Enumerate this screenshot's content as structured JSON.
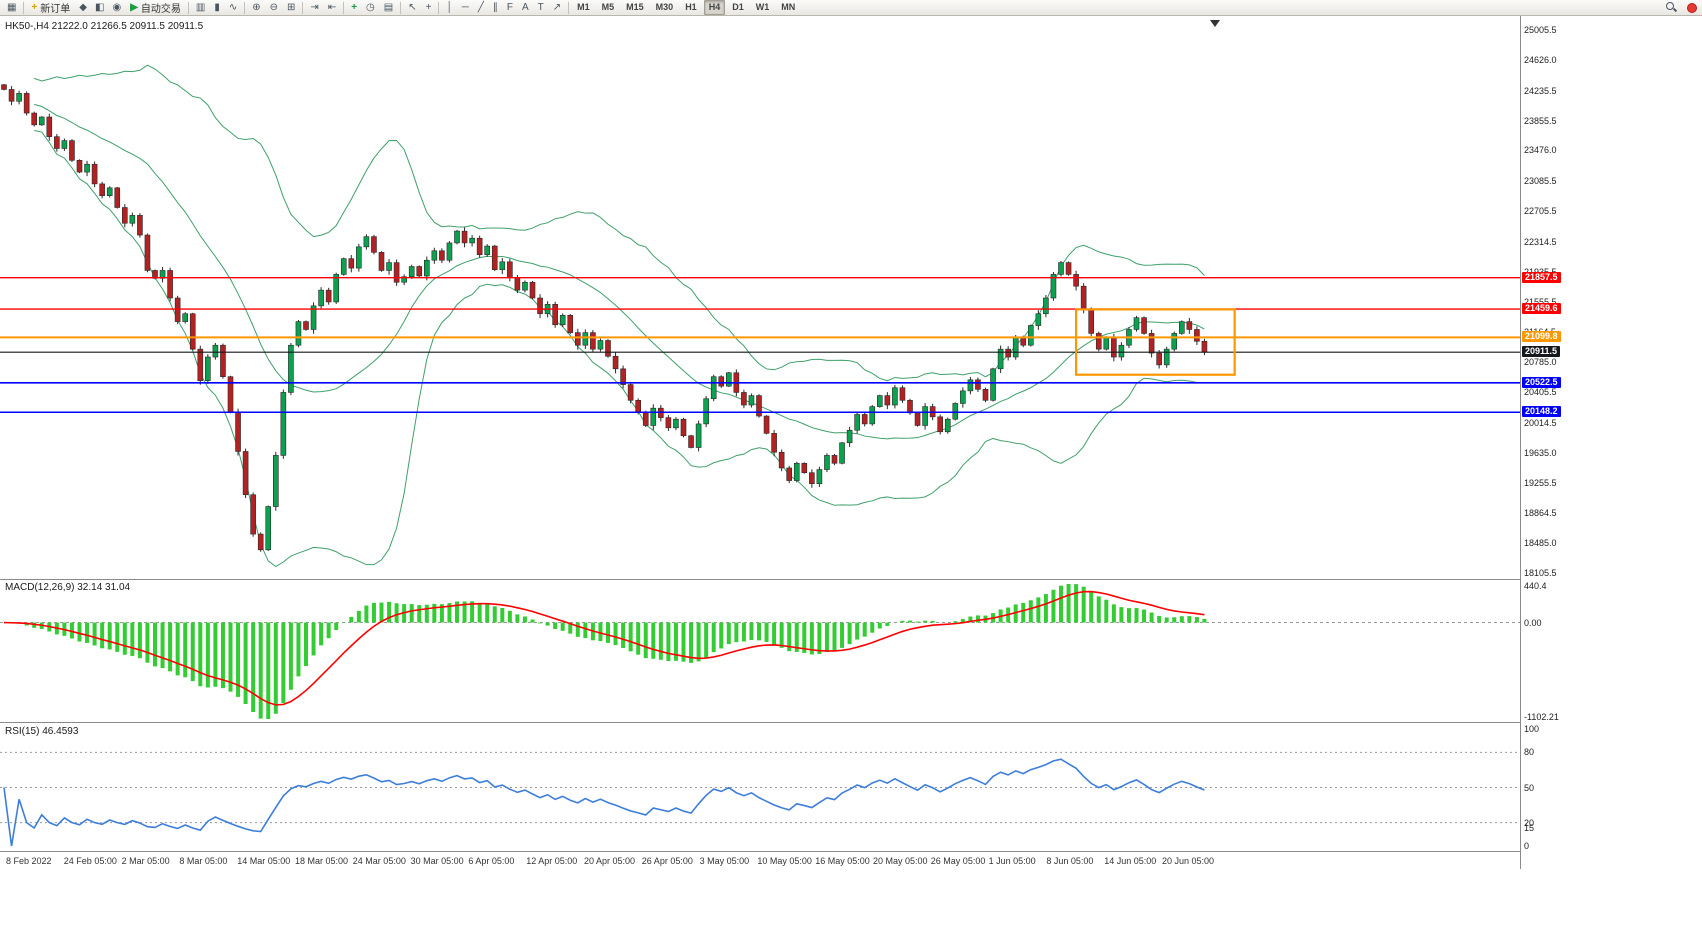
{
  "colors": {
    "bull": "#0ba14e",
    "bear": "#b22222",
    "bands": "#3fa06b",
    "macd_hist": "#33cc33",
    "macd_signal": "#ff0000",
    "rsi": "#3d7edb",
    "level_red": "#ff0000",
    "level_orange": "#ff9800",
    "level_blue": "#0000ff",
    "level_black": "#15181d"
  },
  "toolbar": {
    "window_icon": "chart-window",
    "new_order_label": "新订单",
    "auto_trading_label": "自动交易",
    "mid_icons": [
      "metaeditor",
      "market-watch",
      "navigator"
    ],
    "icon_groups": [
      [
        "bar-chart",
        "candlestick",
        "line-chart"
      ],
      [
        "zoom-in",
        "zoom-out",
        "tile-windows"
      ],
      [
        "auto-scroll",
        "chart-shift"
      ],
      [
        "indicators",
        "periods",
        "templates"
      ],
      [
        "cursor",
        "crosshair"
      ],
      [
        "vertical-line",
        "horizontal-line",
        "trendline",
        "channel",
        "fibonacci",
        "text",
        "label",
        "arrows"
      ]
    ],
    "timeframes": [
      "M1",
      "M5",
      "M15",
      "M30",
      "H1",
      "H4",
      "D1",
      "W1",
      "MN"
    ],
    "active_timeframe": "H4",
    "right_icons": [
      "search",
      "notifications"
    ]
  },
  "chart_data": {
    "type": "candlestick",
    "symbol": "HK50-",
    "timeframe": "H4",
    "symbol_info": "HK50-,H4  21222.0 21266.5 20911.5 20911.5",
    "ohlc_info": {
      "open": 21222.0,
      "high": 21266.5,
      "low": 20911.5,
      "close": 20911.5
    },
    "closes": [
      24250,
      24100,
      24200,
      23950,
      23800,
      23900,
      23650,
      23500,
      23600,
      23350,
      23200,
      23300,
      23050,
      22900,
      23000,
      22750,
      22550,
      22650,
      22400,
      21950,
      21850,
      21950,
      21600,
      21300,
      21400,
      20950,
      20550,
      20850,
      21000,
      20600,
      20150,
      19650,
      19100,
      18600,
      18400,
      18950,
      19600,
      20400,
      21000,
      21300,
      21200,
      21500,
      21700,
      21550,
      21900,
      22100,
      21980,
      22250,
      22380,
      22180,
      21950,
      22050,
      21800,
      21870,
      22000,
      21880,
      22080,
      22200,
      22080,
      22300,
      22450,
      22300,
      22360,
      22150,
      22260,
      21960,
      22060,
      21860,
      21700,
      21800,
      21600,
      21400,
      21520,
      21260,
      21380,
      21160,
      21000,
      21160,
      20950,
      21060,
      20860,
      20700,
      20500,
      20300,
      20150,
      19980,
      20200,
      20080,
      19950,
      20060,
      19850,
      19700,
      20000,
      20320,
      20600,
      20480,
      20650,
      20400,
      20240,
      20360,
      20100,
      19880,
      19640,
      19440,
      19280,
      19500,
      19380,
      19240,
      19420,
      19600,
      19500,
      19760,
      19920,
      20120,
      20000,
      20220,
      20360,
      20240,
      20460,
      20300,
      20140,
      19980,
      20220,
      20090,
      19900,
      20060,
      20260,
      20420,
      20560,
      20440,
      20300,
      20700,
      20950,
      20850,
      21100,
      21000,
      21250,
      21400,
      21600,
      21900,
      22050,
      21900,
      21750,
      21450,
      21150,
      20950,
      21100,
      20850,
      21000,
      21200,
      21350,
      21150,
      20900,
      20750,
      20950,
      21150,
      21300,
      21200,
      21050,
      20911.5
    ],
    "price_axis": {
      "min": 18105.5,
      "max": 25005.5,
      "ticks": [
        25005.5,
        24626.0,
        24235.5,
        23855.5,
        23476.0,
        23085.5,
        22705.5,
        22314.5,
        21935.5,
        21555.5,
        21164.5,
        20785.0,
        20405.5,
        20014.5,
        19635.0,
        19255.5,
        18864.5,
        18485.0,
        18105.5
      ]
    },
    "levels": [
      {
        "price": 21857.5,
        "label": "21857.5",
        "color": "#ff0000",
        "width": 1.4
      },
      {
        "price": 21459.6,
        "label": "21459.6",
        "color": "#ff0000",
        "width": 1.4
      },
      {
        "price": 21099.8,
        "label": "21099.8",
        "color": "#ff9800",
        "width": 2
      },
      {
        "price": 20911.5,
        "label": "20911.5",
        "color": "#15181d",
        "width": 1.2
      },
      {
        "price": 20522.5,
        "label": "20522.5",
        "color": "#0000ff",
        "width": 1.6
      },
      {
        "price": 20148.2,
        "label": "20148.2",
        "color": "#0000ff",
        "width": 1.6
      }
    ],
    "box": {
      "start_index": 142,
      "end_index": 163,
      "price_top": 21455,
      "price_bottom": 20625,
      "color": "#ff9800"
    },
    "x_labels": [
      "8 Feb 2022",
      "24 Feb 05:00",
      "2 Mar 05:00",
      "8 Mar 05:00",
      "14 Mar 05:00",
      "18 Mar 05:00",
      "24 Mar 05:00",
      "30 Mar 05:00",
      "6 Apr 05:00",
      "12 Apr 05:00",
      "20 Apr 05:00",
      "26 Apr 05:00",
      "3 May 05:00",
      "10 May 05:00",
      "16 May 05:00",
      "20 May 05:00",
      "26 May 05:00",
      "1 Jun 05:00",
      "8 Jun 05:00",
      "14 Jun 05:00",
      "20 Jun 05:00"
    ],
    "indicators": {
      "bollinger": {
        "period": 20,
        "deviation": 2
      },
      "macd": {
        "label": "MACD(12,26,9) 32.14 31.04",
        "fast": 12,
        "slow": 26,
        "signal": 9,
        "values": [
          32.14,
          31.04
        ],
        "axis_max": 440.4,
        "axis_min": -1102.21,
        "axis_max_label": "440.4",
        "axis_zero_label": "0.00",
        "axis_min_label": "-1102.21"
      },
      "rsi": {
        "label": "RSI(15) 46.4593",
        "period": 15,
        "value": 46.4593,
        "levels": [
          80,
          50,
          20
        ],
        "axis_labels": [
          "100",
          "80",
          "50",
          "20",
          "15",
          "0"
        ]
      }
    }
  }
}
